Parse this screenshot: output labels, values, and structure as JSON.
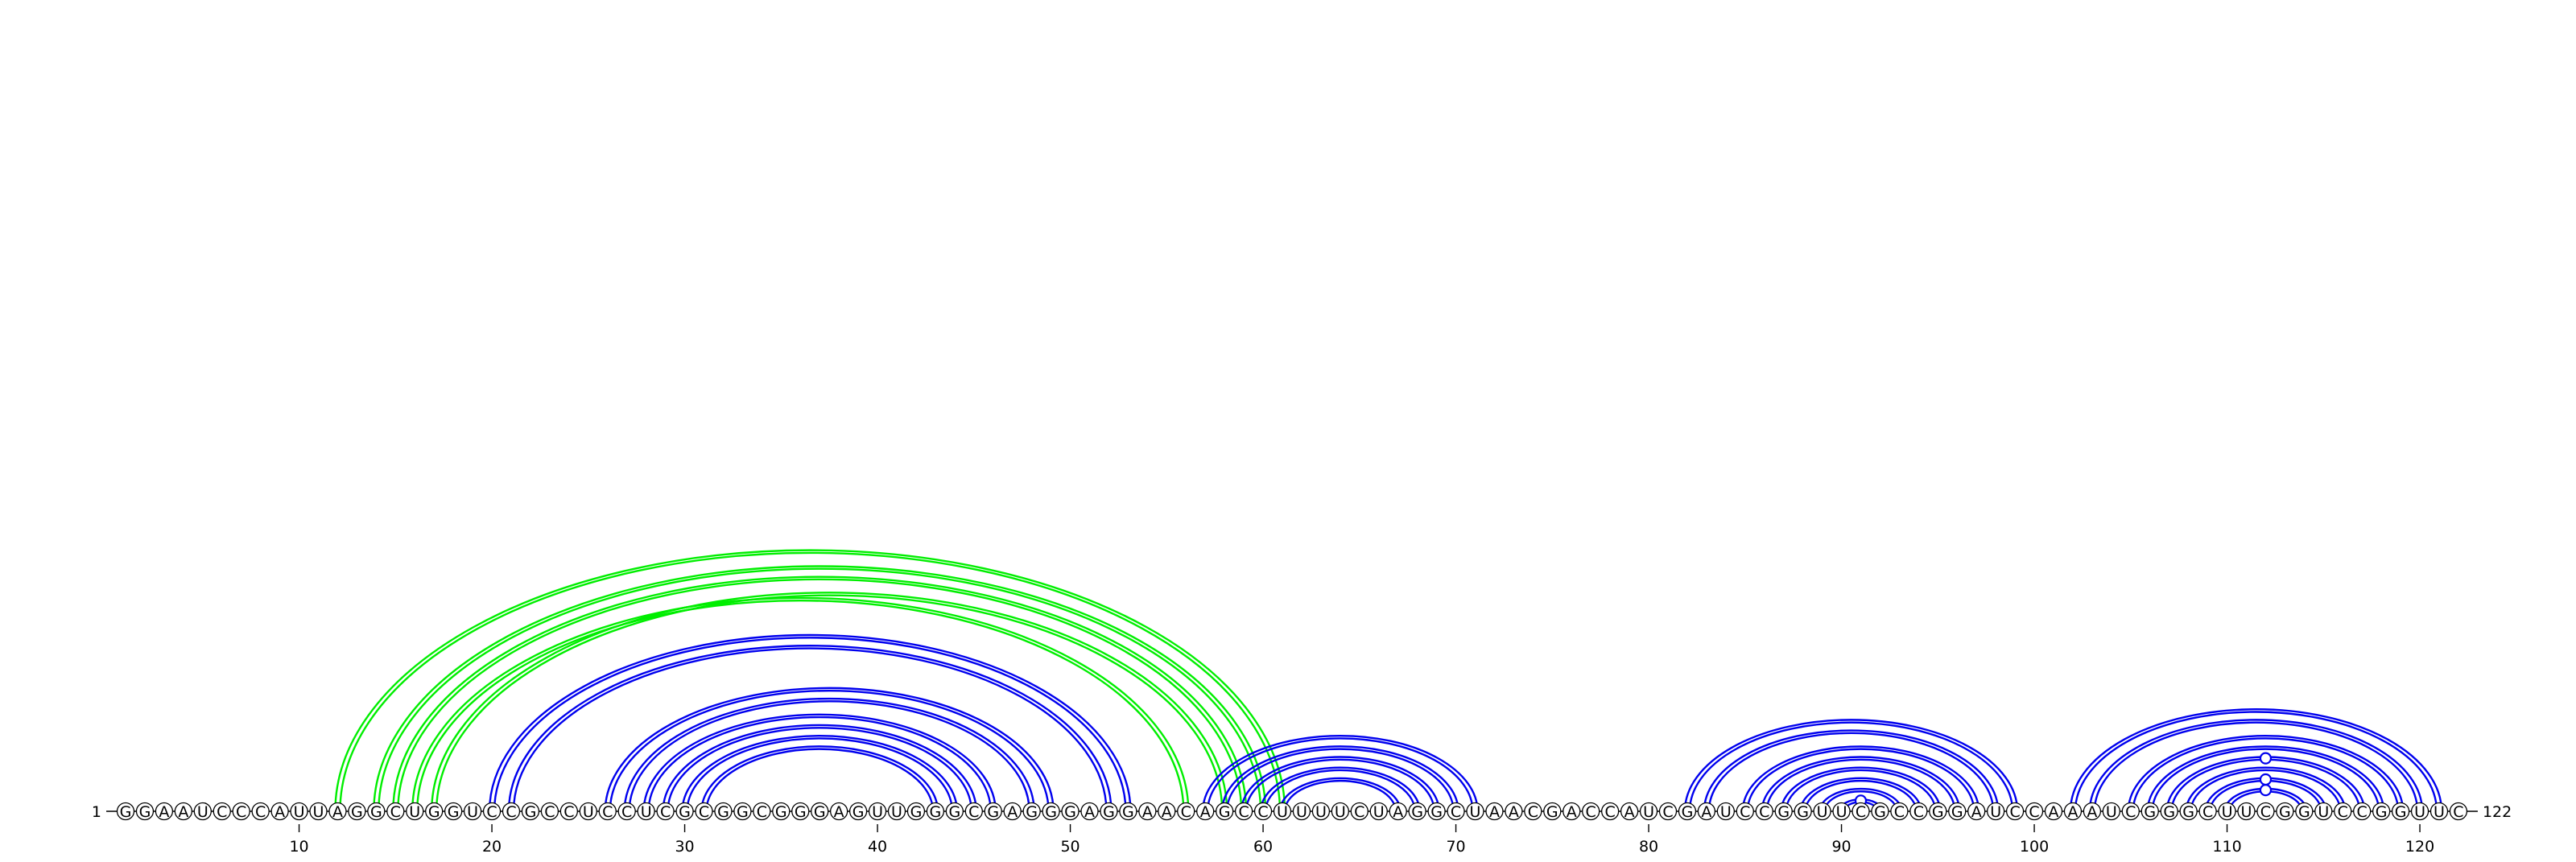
{
  "sequence": "GGAAUCCCAUUAGGCUGGUCCGCCUCCUCGCGGCGGGAGUUGGGCGAGGGAGGAACAGCCUUUUCUAGGCUAACGACCAUCGAUCCGGUUCGCCGGAUCCAAAUCGGGCUUCGGUCCGGUUC",
  "start_label": "1",
  "end_label": "122",
  "tick_labels": [
    "10",
    "20",
    "30",
    "40",
    "50",
    "60",
    "70",
    "80",
    "90",
    "100",
    "110",
    "120"
  ],
  "tick_positions": [
    10,
    20,
    30,
    40,
    50,
    60,
    70,
    80,
    90,
    100,
    110,
    120
  ],
  "colors": {
    "blue": "#0000ee",
    "green": "#00ee00",
    "backbone": "#000000"
  },
  "arc_groups": [
    {
      "name": "green-helix",
      "color": "green",
      "pairs": [
        [
          12,
          61
        ],
        [
          14,
          60
        ],
        [
          15,
          59
        ],
        [
          17,
          58
        ],
        [
          16,
          56
        ]
      ]
    },
    {
      "name": "blue-helix-20-53",
      "color": "blue",
      "pairs": [
        [
          20,
          53
        ],
        [
          21,
          52
        ]
      ]
    },
    {
      "name": "blue-helix-26-49",
      "color": "blue",
      "pairs": [
        [
          26,
          49
        ],
        [
          27,
          48
        ],
        [
          28,
          46
        ],
        [
          29,
          45
        ],
        [
          30,
          44
        ],
        [
          31,
          43
        ]
      ]
    },
    {
      "name": "blue-helix-57-71",
      "color": "blue",
      "pairs": [
        [
          57,
          71
        ],
        [
          58,
          70
        ],
        [
          59,
          69
        ],
        [
          60,
          68
        ],
        [
          61,
          67
        ]
      ]
    },
    {
      "name": "blue-helix-82-99",
      "color": "blue",
      "pairs": [
        [
          82,
          99
        ],
        [
          83,
          98
        ],
        [
          85,
          97
        ],
        [
          86,
          96
        ],
        [
          87,
          95
        ],
        [
          88,
          94
        ],
        [
          89,
          93
        ],
        [
          90,
          92
        ]
      ]
    },
    {
      "name": "blue-helix-102-121",
      "color": "blue",
      "pairs": [
        [
          102,
          121
        ],
        [
          103,
          120
        ],
        [
          105,
          119
        ],
        [
          106,
          118
        ],
        [
          107,
          117
        ],
        [
          108,
          116
        ],
        [
          109,
          115
        ],
        [
          110,
          114
        ]
      ]
    }
  ],
  "double_strand_groups": [
    "green-helix",
    "blue-helix-20-53",
    "blue-helix-26-49",
    "blue-helix-82-99",
    "blue-helix-57-71",
    "blue-helix-102-121"
  ],
  "noncanonical_markers": [
    {
      "i": 90,
      "j": 92
    },
    {
      "i": 110,
      "j": 114
    },
    {
      "i": 109,
      "j": 115
    },
    {
      "i": 107,
      "j": 117
    }
  ]
}
